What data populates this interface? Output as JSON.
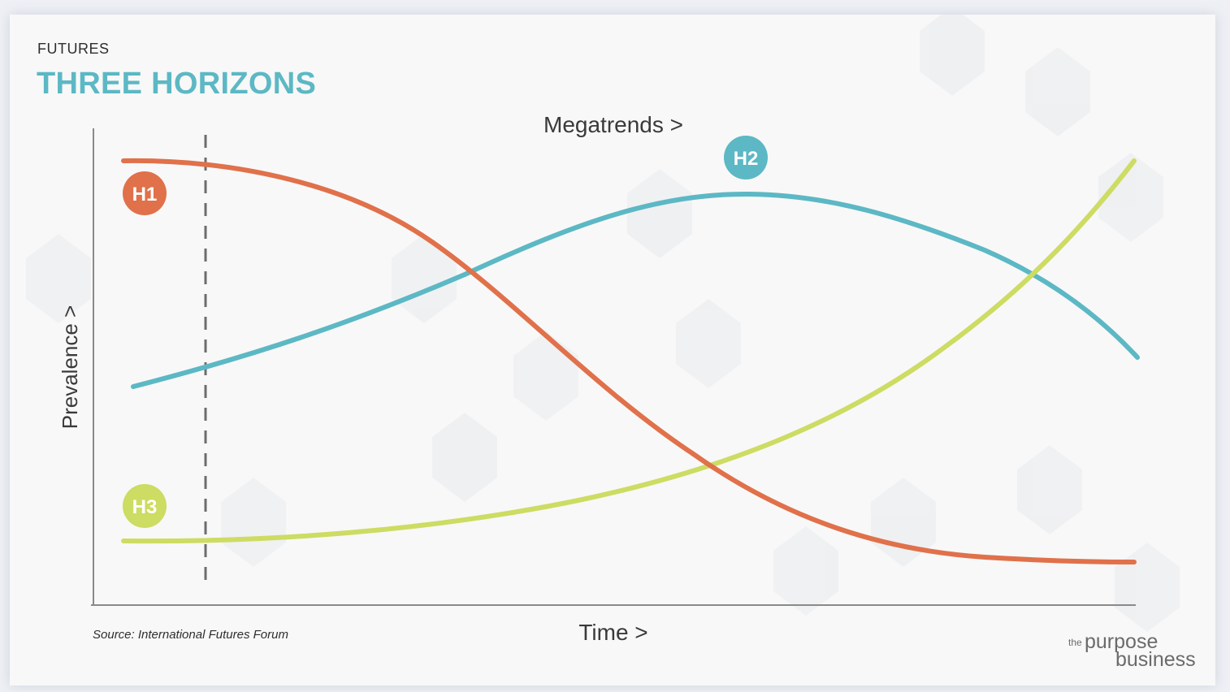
{
  "header": {
    "eyebrow": "FUTURES",
    "title": "THREE HORIZONS"
  },
  "diagram": {
    "top_label": "Megatrends >",
    "y_axis_label": "Prevalence >",
    "x_axis_label": "Time >",
    "marker_line": "dashed vertical line near start",
    "horizons": [
      {
        "label": "H1",
        "color": "#e0714a",
        "shape": "declining s-curve"
      },
      {
        "label": "H2",
        "color": "#5cb8c4",
        "shape": "rise and fall"
      },
      {
        "label": "H3",
        "color": "#cddc62",
        "shape": "accelerating rise"
      }
    ]
  },
  "footer": {
    "source": "Source: International Futures Forum",
    "logo_the": "the",
    "logo_word1": "purpose",
    "logo_word2": "business"
  }
}
